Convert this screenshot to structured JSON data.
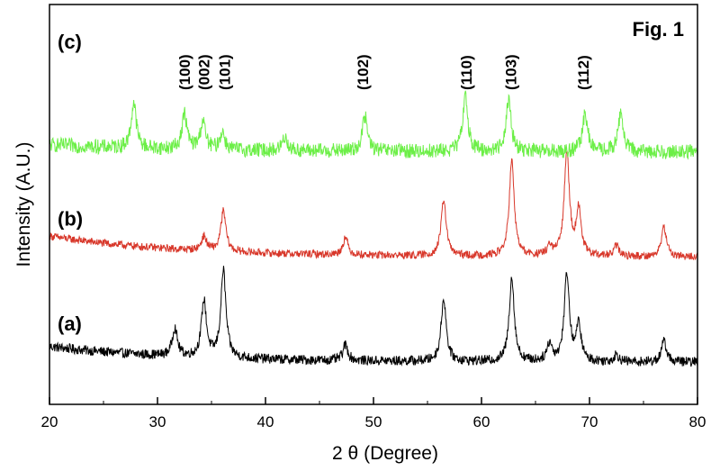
{
  "chart_data": {
    "type": "line",
    "title": "Fig. 1",
    "xlabel": "2 θ (Degree)",
    "ylabel": "Intensity (A.U.)",
    "xlim": [
      20,
      80
    ],
    "x_ticks": [
      20,
      30,
      40,
      50,
      60,
      70,
      80
    ],
    "y_ticks_labeled": false,
    "grid": false,
    "series": [
      {
        "name": "(a)",
        "color": "#000000",
        "baseline": 1.0,
        "peaks": [
          {
            "x": 31.6,
            "height": 0.8
          },
          {
            "x": 34.3,
            "height": 1.6
          },
          {
            "x": 36.1,
            "height": 2.5
          },
          {
            "x": 47.4,
            "height": 0.45
          },
          {
            "x": 56.5,
            "height": 1.8
          },
          {
            "x": 62.8,
            "height": 2.4
          },
          {
            "x": 66.3,
            "height": 0.5
          },
          {
            "x": 67.9,
            "height": 2.5
          },
          {
            "x": 69.0,
            "height": 1.0
          },
          {
            "x": 72.5,
            "height": 0.2
          },
          {
            "x": 76.9,
            "height": 0.6
          }
        ]
      },
      {
        "name": "(b)",
        "color": "#d8372a",
        "baseline": 4.0,
        "peaks": [
          {
            "x": 34.3,
            "height": 0.4
          },
          {
            "x": 36.1,
            "height": 1.15
          },
          {
            "x": 47.4,
            "height": 0.5
          },
          {
            "x": 56.5,
            "height": 1.6
          },
          {
            "x": 62.8,
            "height": 2.7
          },
          {
            "x": 66.3,
            "height": 0.25
          },
          {
            "x": 67.9,
            "height": 3.0
          },
          {
            "x": 69.0,
            "height": 1.3
          },
          {
            "x": 72.5,
            "height": 0.3
          },
          {
            "x": 76.9,
            "height": 0.85
          }
        ]
      },
      {
        "name": "(c)",
        "color": "#6cef47",
        "baseline": 7.0,
        "peaks": [
          {
            "x": 27.8,
            "height": 1.3
          },
          {
            "x": 32.5,
            "height": 1.0
          },
          {
            "x": 34.2,
            "height": 0.8
          },
          {
            "x": 36.0,
            "height": 0.5
          },
          {
            "x": 41.8,
            "height": 0.4
          },
          {
            "x": 49.2,
            "height": 1.0
          },
          {
            "x": 58.5,
            "height": 1.6
          },
          {
            "x": 62.5,
            "height": 1.5
          },
          {
            "x": 69.6,
            "height": 1.1
          },
          {
            "x": 72.9,
            "height": 1.1
          }
        ]
      }
    ],
    "peak_labels": [
      {
        "text": "(100)",
        "x": 32.5
      },
      {
        "text": "(002)",
        "x": 34.3
      },
      {
        "text": "(101)",
        "x": 36.2
      },
      {
        "text": "(102)",
        "x": 49.0
      },
      {
        "text": "(110)",
        "x": 58.6
      },
      {
        "text": "(103)",
        "x": 62.7
      },
      {
        "text": "(112)",
        "x": 69.4
      }
    ]
  }
}
